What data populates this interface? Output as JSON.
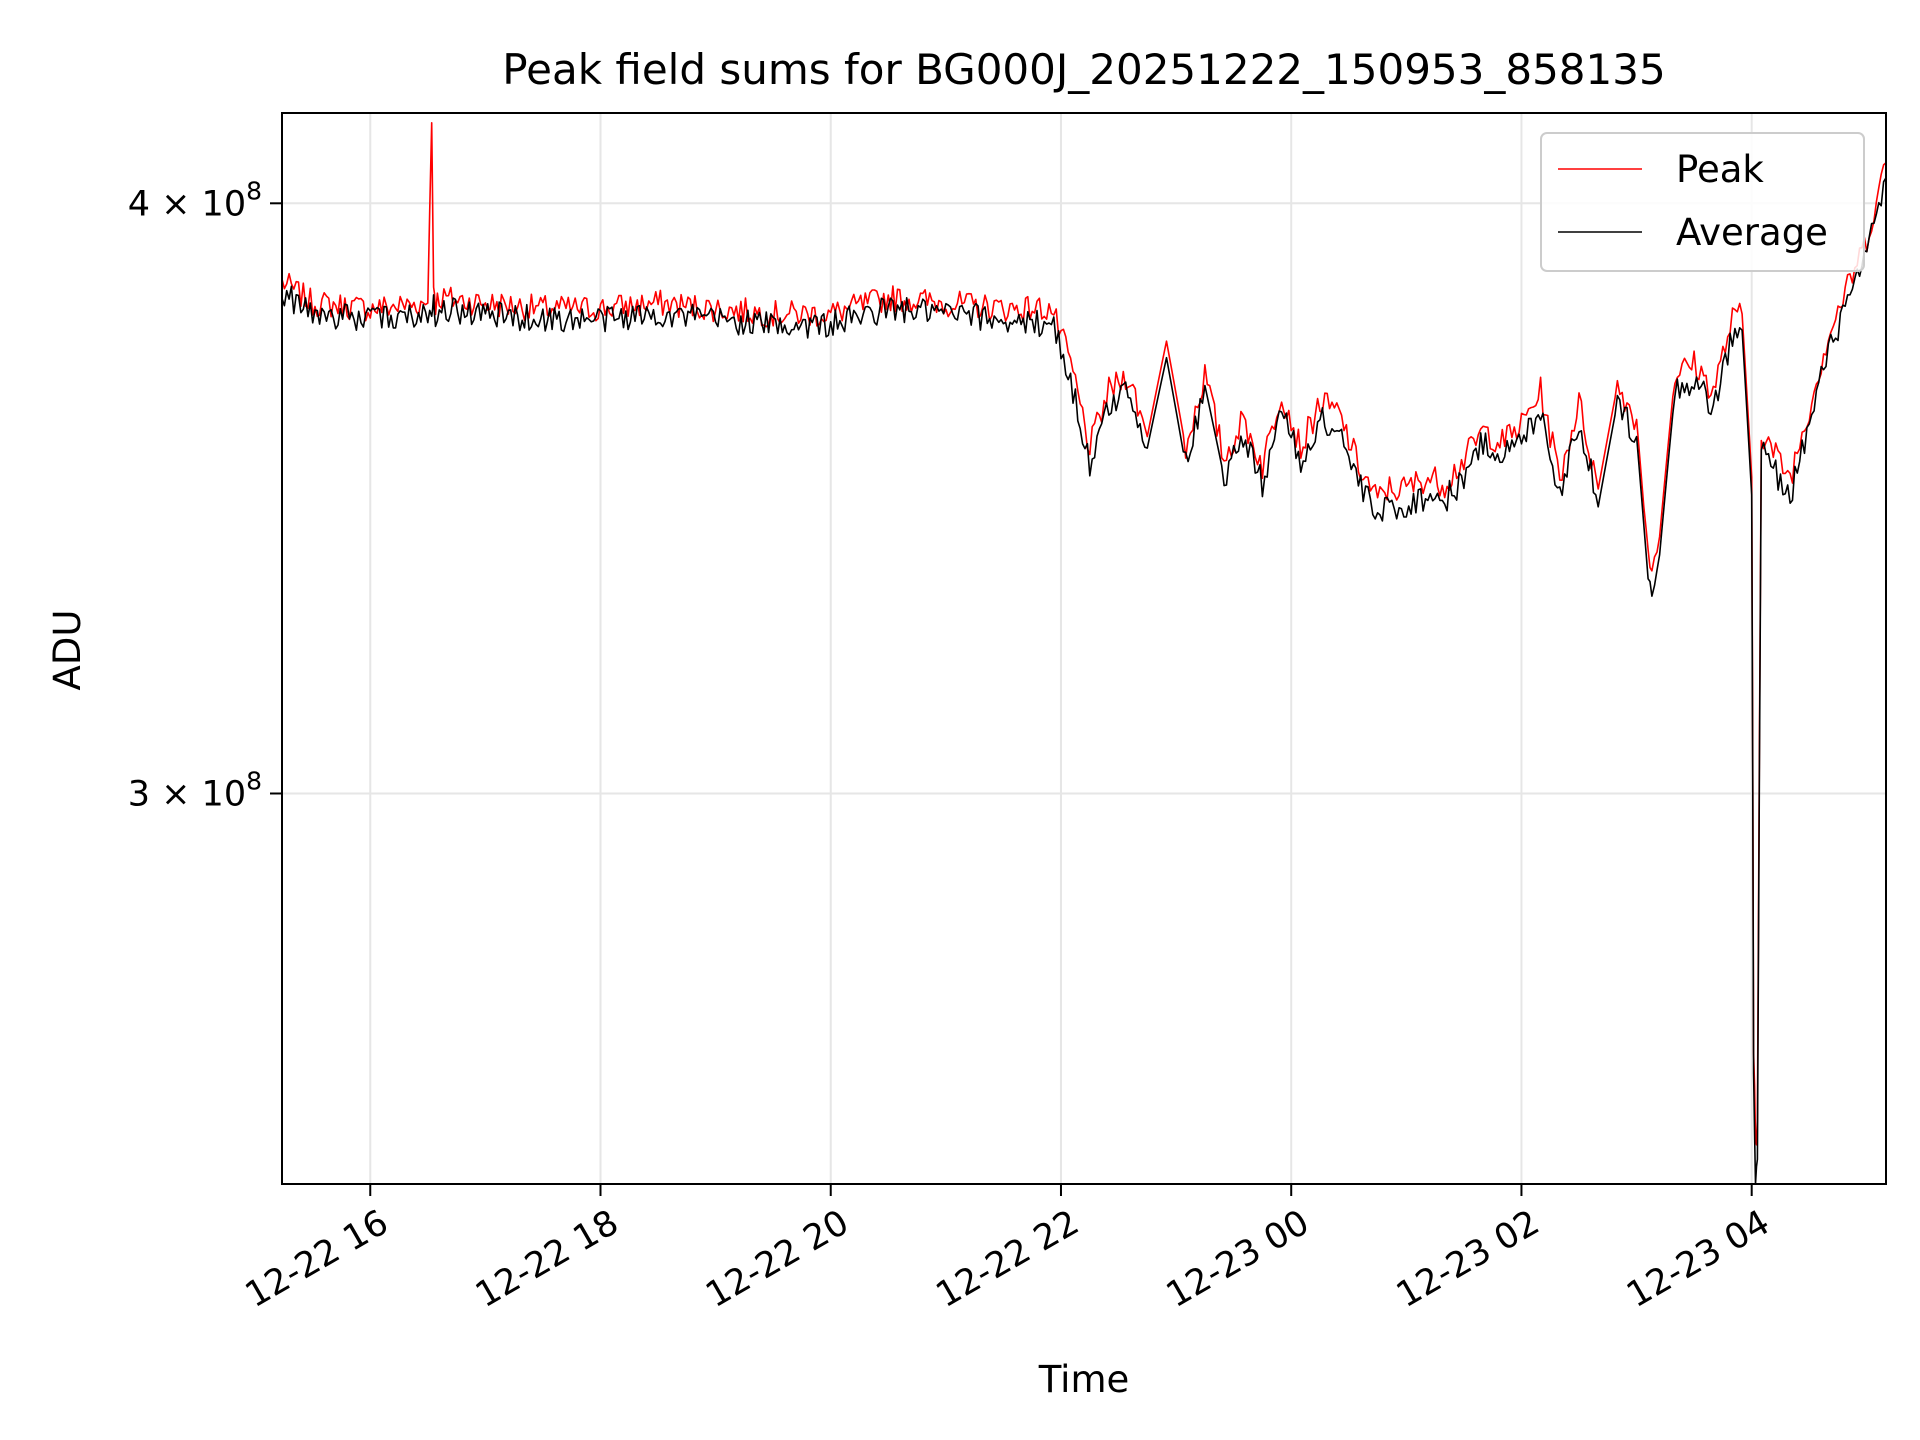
{
  "chart_data": {
    "type": "line",
    "title": "Peak field sums for BG000J_20251222_150953_858135",
    "xlabel": "Time",
    "ylabel": "ADU",
    "yscale": "log",
    "xlim": [
      "2025-12-22 15:14",
      "2025-12-23 05:10"
    ],
    "ylim": [
      248000000,
      418000000
    ],
    "grid": true,
    "legend_position": "top-right",
    "x_ticks": [
      {
        "t": "2025-12-22 16:00",
        "label": "12-22 16"
      },
      {
        "t": "2025-12-22 18:00",
        "label": "12-22 18"
      },
      {
        "t": "2025-12-22 20:00",
        "label": "12-22 20"
      },
      {
        "t": "2025-12-22 22:00",
        "label": "12-22 22"
      },
      {
        "t": "2025-12-23 00:00",
        "label": "12-23 00"
      },
      {
        "t": "2025-12-23 02:00",
        "label": "12-23 02"
      },
      {
        "t": "2025-12-23 04:00",
        "label": "12-23 04"
      }
    ],
    "y_ticks": [
      {
        "value": 300000000,
        "mantissa": "3",
        "exponent": "8"
      },
      {
        "value": 400000000,
        "mantissa": "4",
        "exponent": "8"
      }
    ],
    "series": [
      {
        "name": "Peak",
        "color": "#ff0000",
        "x": [
          "2025-12-22 15:14",
          "2025-12-22 15:30",
          "2025-12-22 16:00",
          "2025-12-22 16:30",
          "2025-12-22 16:32",
          "2025-12-22 16:33",
          "2025-12-22 16:34",
          "2025-12-22 16:36",
          "2025-12-22 17:00",
          "2025-12-22 17:30",
          "2025-12-22 18:00",
          "2025-12-22 18:30",
          "2025-12-22 19:00",
          "2025-12-22 19:30",
          "2025-12-22 20:00",
          "2025-12-22 20:30",
          "2025-12-22 21:00",
          "2025-12-22 21:30",
          "2025-12-22 21:45",
          "2025-12-22 21:55",
          "2025-12-22 22:05",
          "2025-12-22 22:15",
          "2025-12-22 22:25",
          "2025-12-22 22:35",
          "2025-12-22 22:45",
          "2025-12-22 22:55",
          "2025-12-22 23:05",
          "2025-12-22 23:15",
          "2025-12-22 23:25",
          "2025-12-22 23:35",
          "2025-12-22 23:45",
          "2025-12-22 23:55",
          "2025-12-23 00:05",
          "2025-12-23 00:15",
          "2025-12-23 00:25",
          "2025-12-23 00:35",
          "2025-12-23 00:45",
          "2025-12-23 00:50",
          "2025-12-23 01:00",
          "2025-12-23 01:10",
          "2025-12-23 01:20",
          "2025-12-23 01:30",
          "2025-12-23 01:40",
          "2025-12-23 01:50",
          "2025-12-23 02:00",
          "2025-12-23 02:10",
          "2025-12-23 02:20",
          "2025-12-23 02:30",
          "2025-12-23 02:40",
          "2025-12-23 02:50",
          "2025-12-23 03:00",
          "2025-12-23 03:05",
          "2025-12-23 03:08",
          "2025-12-23 03:12",
          "2025-12-23 03:20",
          "2025-12-23 03:30",
          "2025-12-23 03:40",
          "2025-12-23 03:50",
          "2025-12-23 03:55",
          "2025-12-23 04:00",
          "2025-12-23 04:01",
          "2025-12-23 04:02",
          "2025-12-23 04:03",
          "2025-12-23 04:05",
          "2025-12-23 04:10",
          "2025-12-23 04:20",
          "2025-12-23 04:30",
          "2025-12-23 04:40",
          "2025-12-23 04:50",
          "2025-12-23 05:00",
          "2025-12-23 05:10"
        ],
        "values": [
          385000000,
          381000000,
          380000000,
          381000000,
          416000000,
          385000000,
          381000000,
          382000000,
          381000000,
          380000000,
          380000000,
          381000000,
          380000000,
          379000000,
          379000000,
          382000000,
          381000000,
          380000000,
          380000000,
          380000000,
          370000000,
          355000000,
          365000000,
          368000000,
          357000000,
          374000000,
          355000000,
          368000000,
          353000000,
          360000000,
          352000000,
          365000000,
          355000000,
          363000000,
          361000000,
          352000000,
          346000000,
          348000000,
          348000000,
          350000000,
          349000000,
          353000000,
          358000000,
          356000000,
          359000000,
          365000000,
          350000000,
          363000000,
          348000000,
          366000000,
          360000000,
          340000000,
          335000000,
          340000000,
          368000000,
          370000000,
          365000000,
          378000000,
          379000000,
          350000000,
          265000000,
          254000000,
          256000000,
          358000000,
          355000000,
          350000000,
          362000000,
          375000000,
          384000000,
          393000000,
          408000000
        ]
      },
      {
        "name": "Average",
        "color": "#000000",
        "x": [
          "2025-12-22 15:14",
          "2025-12-22 15:30",
          "2025-12-22 16:00",
          "2025-12-22 16:30",
          "2025-12-22 16:32",
          "2025-12-22 16:33",
          "2025-12-22 16:34",
          "2025-12-22 16:36",
          "2025-12-22 17:00",
          "2025-12-22 17:30",
          "2025-12-22 18:00",
          "2025-12-22 18:30",
          "2025-12-22 19:00",
          "2025-12-22 19:30",
          "2025-12-22 20:00",
          "2025-12-22 20:30",
          "2025-12-22 21:00",
          "2025-12-22 21:30",
          "2025-12-22 21:45",
          "2025-12-22 21:55",
          "2025-12-22 22:05",
          "2025-12-22 22:15",
          "2025-12-22 22:25",
          "2025-12-22 22:35",
          "2025-12-22 22:45",
          "2025-12-22 22:55",
          "2025-12-22 23:05",
          "2025-12-22 23:15",
          "2025-12-22 23:25",
          "2025-12-22 23:35",
          "2025-12-22 23:45",
          "2025-12-22 23:55",
          "2025-12-23 00:05",
          "2025-12-23 00:15",
          "2025-12-23 00:25",
          "2025-12-23 00:35",
          "2025-12-23 00:45",
          "2025-12-23 00:50",
          "2025-12-23 01:00",
          "2025-12-23 01:10",
          "2025-12-23 01:20",
          "2025-12-23 01:30",
          "2025-12-23 01:40",
          "2025-12-23 01:50",
          "2025-12-23 02:00",
          "2025-12-23 02:10",
          "2025-12-23 02:20",
          "2025-12-23 02:30",
          "2025-12-23 02:40",
          "2025-12-23 02:50",
          "2025-12-23 03:00",
          "2025-12-23 03:05",
          "2025-12-23 03:08",
          "2025-12-23 03:12",
          "2025-12-23 03:20",
          "2025-12-23 03:30",
          "2025-12-23 03:40",
          "2025-12-23 03:50",
          "2025-12-23 03:55",
          "2025-12-23 04:00",
          "2025-12-23 04:01",
          "2025-12-23 04:02",
          "2025-12-23 04:03",
          "2025-12-23 04:05",
          "2025-12-23 04:10",
          "2025-12-23 04:20",
          "2025-12-23 04:30",
          "2025-12-23 04:40",
          "2025-12-23 04:50",
          "2025-12-23 05:00",
          "2025-12-23 05:10"
        ],
        "values": [
          383000000,
          379000000,
          378000000,
          379000000,
          381000000,
          382000000,
          379000000,
          380000000,
          379000000,
          378000000,
          378000000,
          379000000,
          378000000,
          377000000,
          377000000,
          380000000,
          379000000,
          378000000,
          377000000,
          378000000,
          367000000,
          352000000,
          362000000,
          366000000,
          355000000,
          371000000,
          352000000,
          366000000,
          350000000,
          357000000,
          349000000,
          362000000,
          352000000,
          360000000,
          358000000,
          349000000,
          343000000,
          345000000,
          345000000,
          347000000,
          346000000,
          350000000,
          356000000,
          354000000,
          356000000,
          362000000,
          347000000,
          360000000,
          345000000,
          363000000,
          357000000,
          337000000,
          332000000,
          337000000,
          365000000,
          367000000,
          362000000,
          375000000,
          376000000,
          347000000,
          260000000,
          249000000,
          251000000,
          355000000,
          352000000,
          347000000,
          359000000,
          372000000,
          381000000,
          390000000,
          405000000
        ]
      }
    ]
  }
}
